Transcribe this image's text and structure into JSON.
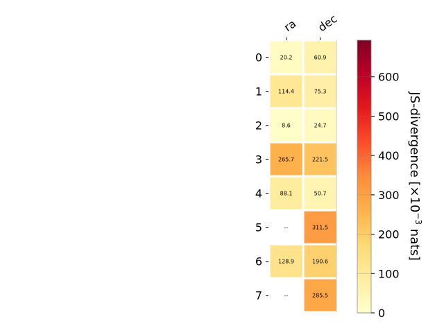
{
  "chart_data": {
    "type": "heatmap",
    "title": "",
    "columns": [
      "ra",
      "dec"
    ],
    "rows": [
      "0",
      "1",
      "2",
      "3",
      "4",
      "5",
      "6",
      "7"
    ],
    "values": [
      [
        20.2,
        60.9
      ],
      [
        114.4,
        75.3
      ],
      [
        8.6,
        24.7
      ],
      [
        265.7,
        221.5
      ],
      [
        88.1,
        50.7
      ],
      [
        null,
        311.5
      ],
      [
        128.9,
        190.6
      ],
      [
        null,
        285.5
      ]
    ],
    "cell_labels": [
      [
        "20.2",
        "60.9"
      ],
      [
        "114.4",
        "75.3"
      ],
      [
        "8.6",
        "24.7"
      ],
      [
        "265.7",
        "221.5"
      ],
      [
        "88.1",
        "50.7"
      ],
      [
        "--",
        "311.5"
      ],
      [
        "128.9",
        "190.6"
      ],
      [
        "--",
        "285.5"
      ]
    ],
    "missing_label": "--",
    "colormap": "YlOrRd",
    "colormap_stops": [
      "#ffffcc",
      "#ffeda0",
      "#fed976",
      "#feb24c",
      "#fd8d3c",
      "#fc4e2a",
      "#e31a1c",
      "#bd0026",
      "#800026"
    ],
    "vmin": 0,
    "vmax": 693,
    "colorbar": {
      "label": "JS-divergence [×10",
      "label_exp": "−3",
      "label_tail": " nats]",
      "ticks": [
        0,
        100,
        200,
        300,
        400,
        500,
        600
      ],
      "tick_labels": [
        "0",
        "100",
        "200",
        "300",
        "400",
        "500",
        "600"
      ]
    },
    "text_color_threshold": 150,
    "text_color_dark": "#000000",
    "text_color_light": "#ffffff"
  }
}
